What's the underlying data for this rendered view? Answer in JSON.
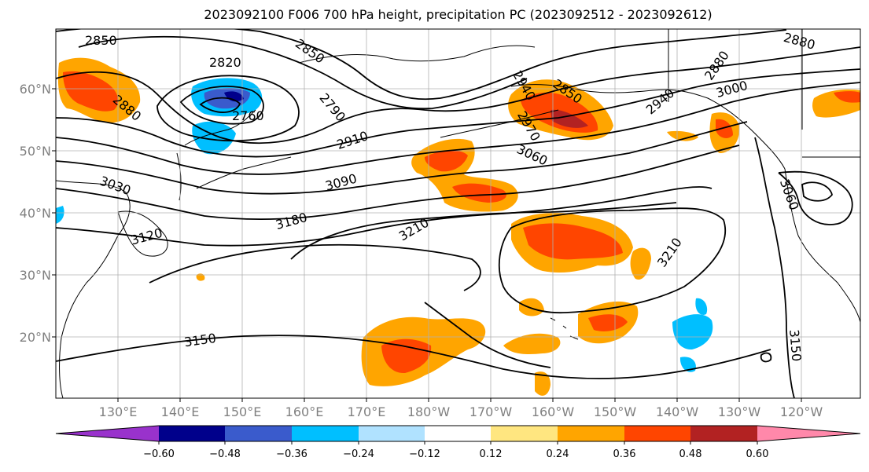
{
  "title": "2023092100 F006 700 hPa height, precipitation PC (2023092512 - 2023092612)",
  "latitude_labels": [
    "60°N",
    "50°N",
    "40°N",
    "30°N",
    "20°N"
  ],
  "longitude_labels": [
    "130°E",
    "140°E",
    "150°E",
    "160°E",
    "170°E",
    "180°W",
    "170°W",
    "160°W",
    "150°W",
    "140°W",
    "130°W",
    "120°W"
  ],
  "contour_labels": [
    "2850",
    "2820",
    "2850",
    "2790",
    "2760",
    "2880",
    "2910",
    "2940",
    "2970",
    "2850",
    "2880",
    "2940",
    "3000",
    "2880",
    "3030",
    "3090",
    "3060",
    "3180",
    "3210",
    "3210",
    "3060",
    "3120",
    "3150",
    "3150"
  ],
  "colorbar": {
    "tick_labels": [
      "−0.60",
      "−0.48",
      "−0.36",
      "−0.24",
      "−0.12",
      "0.12",
      "0.24",
      "0.36",
      "0.48",
      "0.60"
    ],
    "colors": [
      "#9932cc",
      "#00008b",
      "#3a5bcc",
      "#00bfff",
      "#b0e2ff",
      "#ffffff",
      "#ffe680",
      "#ffa500",
      "#ff4500",
      "#b22222",
      "#ff88aa"
    ]
  },
  "colors": {
    "land_outline": "#000000",
    "grid": "#b0b0b0",
    "contour": "#000000",
    "axis_label": "#808080"
  }
}
